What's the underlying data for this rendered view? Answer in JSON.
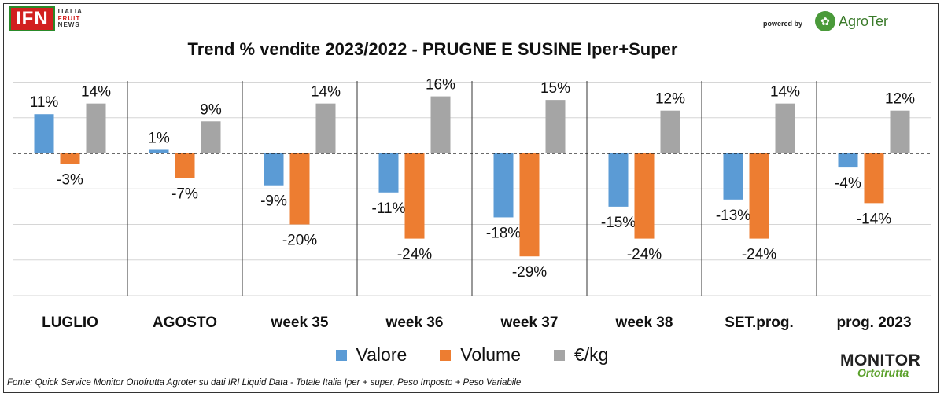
{
  "branding": {
    "ifn_logo": "IFN",
    "ifn_sub": [
      "ITALIA",
      "FRUIT",
      "NEWS"
    ],
    "powered_by": "powered by",
    "agroter": "AgroTer",
    "monitor_top": "MONITOR",
    "monitor_bottom": "Ortofrutta"
  },
  "footer": {
    "source": "Fonte: Quick Service Monitor Ortofrutta Agroter su dati IRI Liquid Data - Totale Italia Iper + super, Peso Imposto + Peso Variabile"
  },
  "chart_data": {
    "type": "bar",
    "title": "Trend % vendite 2023/2022 - PRUGNE E SUSINE Iper+Super",
    "categories": [
      "LUGLIO",
      "AGOSTO",
      "week 35",
      "week 36",
      "week 37",
      "week 38",
      "SET.prog.",
      "prog. 2023"
    ],
    "series": [
      {
        "name": "Valore",
        "color": "#5b9bd5",
        "values": [
          11,
          1,
          -9,
          -11,
          -18,
          -15,
          -13,
          -4
        ],
        "labels": [
          "11%",
          "1%",
          "-9%",
          "-11%",
          "-18%",
          "-15%",
          "-13%",
          "-4%"
        ]
      },
      {
        "name": "Volume",
        "color": "#ed7d31",
        "values": [
          -3,
          -7,
          -20,
          -24,
          -29,
          -24,
          -24,
          -14
        ],
        "labels": [
          "-3%",
          "-7%",
          "-20%",
          "-24%",
          "-29%",
          "-24%",
          "-24%",
          "-14%"
        ]
      },
      {
        "name": "€/kg",
        "color": "#a5a5a5",
        "values": [
          14,
          9,
          14,
          16,
          15,
          12,
          14,
          12
        ],
        "labels": [
          "14%",
          "9%",
          "14%",
          "16%",
          "15%",
          "12%",
          "14%",
          "12%"
        ]
      }
    ],
    "ylim": [
      -40,
      21
    ],
    "grid": true,
    "legend": "bottom"
  }
}
